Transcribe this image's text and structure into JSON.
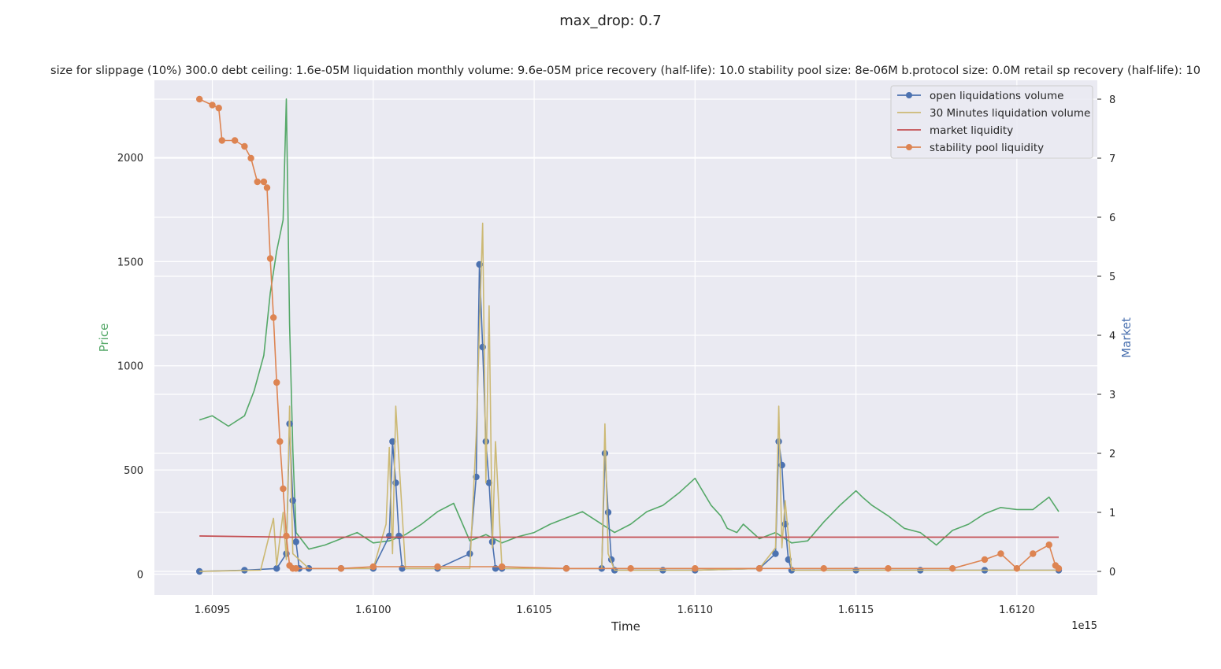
{
  "chart_data": {
    "type": "line",
    "suptitle": "max_drop: 0.7",
    "title": "size for slippage (10%) 300.0 debt ceiling: 1.6e-05M liquidation monthly volume: 9.6e-05M price recovery (half-life): 10.0 stability pool size: 8e-06M b.protocol size: 0.0M retail sp recovery (half-life): 10",
    "xlabel": "Time",
    "ylabel_left": "Price",
    "ylabel_right": "Market",
    "x_offset_label": "1e15",
    "xlim": [
      1.60932,
      1.61225
    ],
    "ylim_left": [
      -100,
      2370
    ],
    "ylim_right": [
      -0.4,
      8.32
    ],
    "x_ticks": [
      1.6095,
      1.61,
      1.6105,
      1.611,
      1.6115,
      1.612
    ],
    "x_tick_labels": [
      "1.6095",
      "1.6100",
      "1.6105",
      "1.6110",
      "1.6115",
      "1.6120"
    ],
    "y_left_ticks": [
      0,
      500,
      1000,
      1500,
      2000
    ],
    "y_left_tick_labels": [
      "0",
      "500",
      "1000",
      "1500",
      "2000"
    ],
    "y_right_ticks": [
      0,
      1,
      2,
      3,
      4,
      5,
      6,
      7,
      8
    ],
    "y_right_tick_labels": [
      "0",
      "1",
      "2",
      "3",
      "4",
      "5",
      "6",
      "7",
      "8"
    ],
    "grid": true,
    "legend_position": "top-right",
    "colors": {
      "price": "#55a868",
      "open_liquidations": "#4c72b0",
      "liquidation_30m": "#ccb974",
      "market_liquidity": "#c44e52",
      "stability_pool": "#dd8452",
      "background": "#eaeaf2",
      "grid": "#ffffff"
    },
    "series": [
      {
        "name": "price",
        "axis": "left",
        "x": [
          1.60946,
          1.6095,
          1.60955,
          1.6096,
          1.60963,
          1.60966,
          1.60968,
          1.6097,
          1.60972,
          1.60973,
          1.60974,
          1.60975,
          1.60976,
          1.6098,
          1.60985,
          1.6099,
          1.60995,
          1.61,
          1.61005,
          1.6101,
          1.61015,
          1.6102,
          1.61025,
          1.6103,
          1.61035,
          1.6104,
          1.61045,
          1.6105,
          1.61055,
          1.6106,
          1.61065,
          1.6107,
          1.61075,
          1.6108,
          1.61085,
          1.6109,
          1.61095,
          1.611,
          1.61105,
          1.61108,
          1.6111,
          1.61113,
          1.61115,
          1.6112,
          1.61125,
          1.6113,
          1.61135,
          1.6114,
          1.61145,
          1.6115,
          1.61152,
          1.61155,
          1.6116,
          1.61165,
          1.6117,
          1.61175,
          1.6118,
          1.61185,
          1.6119,
          1.61195,
          1.612,
          1.61205,
          1.6121,
          1.61213
        ],
        "y": [
          740,
          760,
          710,
          760,
          880,
          1050,
          1350,
          1550,
          1700,
          2280,
          1200,
          600,
          200,
          120,
          140,
          170,
          200,
          150,
          160,
          190,
          240,
          300,
          340,
          160,
          190,
          150,
          180,
          200,
          240,
          270,
          300,
          250,
          200,
          240,
          300,
          330,
          390,
          460,
          330,
          280,
          220,
          200,
          240,
          170,
          200,
          150,
          160,
          250,
          330,
          400,
          370,
          330,
          280,
          220,
          200,
          140,
          210,
          240,
          290,
          320,
          310,
          310,
          370,
          300
        ]
      },
      {
        "name": "open liquidations volume",
        "axis": "right",
        "x": [
          1.60946,
          1.6096,
          1.6097,
          1.60973,
          1.60974,
          1.60975,
          1.60976,
          1.60977,
          1.6098,
          1.6099,
          1.61,
          1.61005,
          1.61006,
          1.61007,
          1.61008,
          1.61009,
          1.6102,
          1.6103,
          1.61032,
          1.61033,
          1.61034,
          1.61035,
          1.61036,
          1.61037,
          1.61038,
          1.6104,
          1.6106,
          1.61071,
          1.61072,
          1.61073,
          1.61074,
          1.61075,
          1.6109,
          1.611,
          1.6112,
          1.61125,
          1.61126,
          1.61127,
          1.61128,
          1.61129,
          1.6113,
          1.6115,
          1.6117,
          1.6119,
          1.61213
        ],
        "y": [
          0.0,
          0.02,
          0.05,
          0.3,
          2.5,
          1.2,
          0.5,
          0.05,
          0.05,
          0.05,
          0.05,
          0.6,
          2.2,
          1.5,
          0.6,
          0.05,
          0.05,
          0.3,
          1.6,
          5.2,
          3.8,
          2.2,
          1.5,
          0.5,
          0.05,
          0.05,
          0.05,
          0.05,
          2.0,
          1.0,
          0.2,
          0.02,
          0.02,
          0.02,
          0.05,
          0.3,
          2.2,
          1.8,
          0.8,
          0.2,
          0.02,
          0.02,
          0.02,
          0.02,
          0.02
        ]
      },
      {
        "name": "30 Minutes liquidation volume",
        "axis": "right",
        "x": [
          1.60946,
          1.60965,
          1.60969,
          1.6097,
          1.60972,
          1.60973,
          1.60974,
          1.60975,
          1.6098,
          1.6099,
          1.61,
          1.61004,
          1.61005,
          1.61006,
          1.61007,
          1.6101,
          1.6102,
          1.6103,
          1.61032,
          1.61034,
          1.61035,
          1.61036,
          1.61037,
          1.61038,
          1.6104,
          1.6106,
          1.61071,
          1.61072,
          1.61073,
          1.61075,
          1.611,
          1.6112,
          1.61125,
          1.61126,
          1.61127,
          1.61128,
          1.6113,
          1.6115,
          1.6117,
          1.6119,
          1.61213
        ],
        "y": [
          0.0,
          0.02,
          0.9,
          0.1,
          1.0,
          0.2,
          2.8,
          0.3,
          0.05,
          0.05,
          0.05,
          0.8,
          2.1,
          0.3,
          2.8,
          0.05,
          0.05,
          0.05,
          2.3,
          5.9,
          1.5,
          4.5,
          0.4,
          2.2,
          0.05,
          0.05,
          0.05,
          2.5,
          0.3,
          0.02,
          0.02,
          0.05,
          0.4,
          2.8,
          0.4,
          1.2,
          0.02,
          0.02,
          0.02,
          0.02,
          0.02
        ]
      },
      {
        "name": "market liquidity",
        "axis": "right",
        "x": [
          1.60946,
          1.60974,
          1.61213
        ],
        "y": [
          0.6,
          0.58,
          0.58
        ]
      },
      {
        "name": "stability pool liquidity",
        "axis": "right",
        "x": [
          1.60946,
          1.6095,
          1.60952,
          1.60953,
          1.60957,
          1.6096,
          1.60962,
          1.60964,
          1.60966,
          1.60967,
          1.60968,
          1.60969,
          1.6097,
          1.60971,
          1.60972,
          1.60973,
          1.60974,
          1.60975,
          1.60976,
          1.6099,
          1.61,
          1.6102,
          1.6104,
          1.6106,
          1.6108,
          1.611,
          1.6112,
          1.6114,
          1.6116,
          1.6118,
          1.6119,
          1.61195,
          1.612,
          1.61205,
          1.6121,
          1.61212,
          1.61213
        ],
        "y": [
          8.0,
          7.9,
          7.85,
          7.3,
          7.3,
          7.2,
          7.0,
          6.6,
          6.6,
          6.5,
          5.3,
          4.3,
          3.2,
          2.2,
          1.4,
          0.6,
          0.1,
          0.05,
          0.05,
          0.05,
          0.08,
          0.08,
          0.08,
          0.05,
          0.05,
          0.05,
          0.05,
          0.05,
          0.05,
          0.05,
          0.2,
          0.3,
          0.05,
          0.3,
          0.45,
          0.1,
          0.05
        ]
      }
    ]
  }
}
